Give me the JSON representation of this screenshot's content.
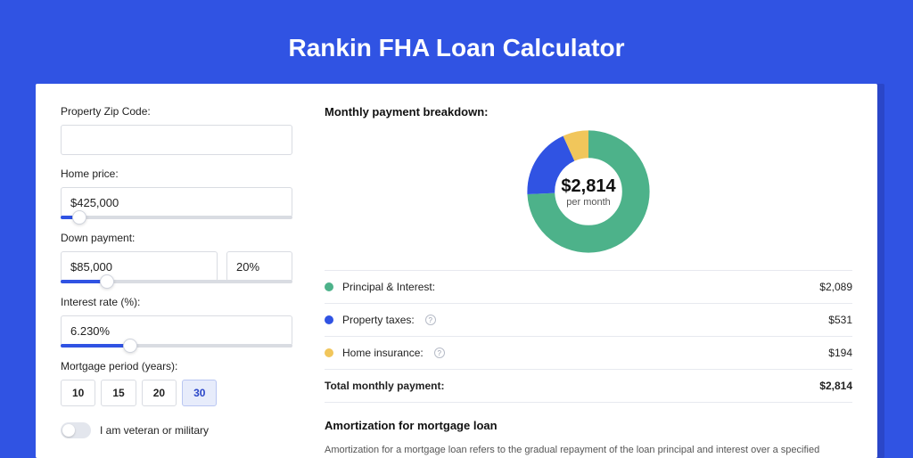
{
  "page": {
    "title": "Rankin FHA Loan Calculator",
    "background_color": "#3053e3",
    "card_shadow_color": "#2a46c8"
  },
  "form": {
    "zip": {
      "label": "Property Zip Code:",
      "value": ""
    },
    "home_price": {
      "label": "Home price:",
      "value": "$425,000",
      "slider_pct": 8
    },
    "down_payment": {
      "label": "Down payment:",
      "value": "$85,000",
      "pct_value": "20%",
      "slider_pct": 20
    },
    "interest_rate": {
      "label": "Interest rate (%):",
      "value": "6.230%",
      "slider_pct": 30
    },
    "mortgage_period": {
      "label": "Mortgage period (years):",
      "options": [
        "10",
        "15",
        "20",
        "30"
      ],
      "selected": "30"
    },
    "veteran_toggle": {
      "label": "I am veteran or military",
      "on": false
    }
  },
  "breakdown": {
    "title": "Monthly payment breakdown:",
    "center_amount": "$2,814",
    "center_sub": "per month",
    "donut": {
      "stroke_width": 22,
      "segments": [
        {
          "key": "principal_interest",
          "color": "#4db28a",
          "fraction": 0.742
        },
        {
          "key": "property_taxes",
          "color": "#3053e3",
          "fraction": 0.189
        },
        {
          "key": "home_insurance",
          "color": "#f1c65b",
          "fraction": 0.069
        }
      ]
    },
    "rows": [
      {
        "dot": "#4db28a",
        "label": "Principal & Interest:",
        "info": false,
        "amount": "$2,089"
      },
      {
        "dot": "#3053e3",
        "label": "Property taxes:",
        "info": true,
        "amount": "$531"
      },
      {
        "dot": "#f1c65b",
        "label": "Home insurance:",
        "info": true,
        "amount": "$194"
      }
    ],
    "total": {
      "label": "Total monthly payment:",
      "amount": "$2,814"
    }
  },
  "amortization": {
    "title": "Amortization for mortgage loan",
    "text": "Amortization for a mortgage loan refers to the gradual repayment of the loan principal and interest over a specified"
  }
}
